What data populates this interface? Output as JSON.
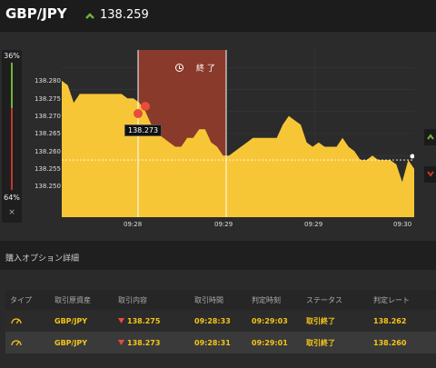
{
  "header": {
    "pair": "GBP/JPY",
    "price": "138.259"
  },
  "gauge": {
    "top_pct": "36%",
    "bottom_pct": "64%",
    "close": "×"
  },
  "chart": {
    "end_label": "終 了",
    "price_tag": "138.273",
    "y_ticks": [
      "138.280",
      "138.275",
      "138.270",
      "138.265",
      "138.260",
      "138.255",
      "138.250"
    ],
    "x_ticks": [
      "09:28",
      "09:29",
      "09:29",
      "09:30"
    ],
    "colors": {
      "area": "#f7c637",
      "expired": "#8a3a2a",
      "up": "#6fb43a",
      "down": "#c0392b"
    }
  },
  "chart_data": {
    "type": "area",
    "ylim": [
      138.246,
      138.284
    ],
    "y_ticks": [
      138.28,
      138.275,
      138.27,
      138.265,
      138.26,
      138.255,
      138.25
    ],
    "x_ticks": [
      "09:28",
      "09:29",
      "09:29",
      "09:30"
    ],
    "current_price": 138.259,
    "marker_price": 138.273,
    "values": [
      138.277,
      138.276,
      138.272,
      138.274,
      138.274,
      138.274,
      138.274,
      138.274,
      138.274,
      138.274,
      138.274,
      138.273,
      138.273,
      138.272,
      138.27,
      138.267,
      138.265,
      138.264,
      138.263,
      138.262,
      138.262,
      138.264,
      138.264,
      138.266,
      138.266,
      138.263,
      138.262,
      138.26,
      138.26,
      138.261,
      138.262,
      138.263,
      138.264,
      138.264,
      138.264,
      138.264,
      138.264,
      138.267,
      138.269,
      138.268,
      138.267,
      138.263,
      138.262,
      138.263,
      138.262,
      138.262,
      138.262,
      138.264,
      138.262,
      138.261,
      138.259,
      138.259,
      138.26,
      138.259,
      138.259,
      138.259,
      138.258,
      138.254,
      138.259,
      138.257
    ]
  },
  "details": {
    "title": "購入オプション詳細",
    "columns": [
      "タイプ",
      "取引原資産",
      "取引内容",
      "取引時間",
      "判定時刻",
      "ステータス",
      "判定レート"
    ],
    "rows": [
      {
        "asset": "GBP/JPY",
        "content": "138.275",
        "time": "09:28:33",
        "judge": "09:29:03",
        "status": "取引終了",
        "rate": "138.262"
      },
      {
        "asset": "GBP/JPY",
        "content": "138.273",
        "time": "09:28:31",
        "judge": "09:29:01",
        "status": "取引終了",
        "rate": "138.260"
      }
    ]
  }
}
